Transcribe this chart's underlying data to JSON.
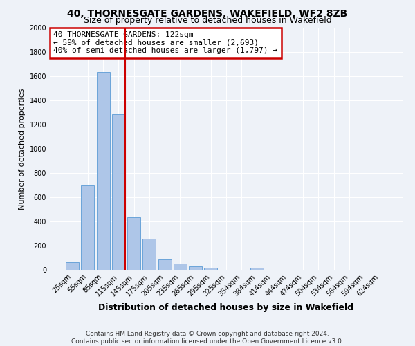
{
  "title": "40, THORNESGATE GARDENS, WAKEFIELD, WF2 8ZB",
  "subtitle": "Size of property relative to detached houses in Wakefield",
  "xlabel": "Distribution of detached houses by size in Wakefield",
  "ylabel": "Number of detached properties",
  "bar_labels": [
    "25sqm",
    "55sqm",
    "85sqm",
    "115sqm",
    "145sqm",
    "175sqm",
    "205sqm",
    "235sqm",
    "265sqm",
    "295sqm",
    "325sqm",
    "354sqm",
    "384sqm",
    "414sqm",
    "444sqm",
    "474sqm",
    "504sqm",
    "534sqm",
    "564sqm",
    "594sqm",
    "624sqm"
  ],
  "bar_values": [
    65,
    695,
    1635,
    1285,
    435,
    255,
    90,
    52,
    30,
    20,
    0,
    0,
    15,
    0,
    0,
    0,
    0,
    0,
    0,
    0,
    0
  ],
  "bar_color": "#aec6e8",
  "bar_edge_color": "#5b9bd5",
  "ref_line_bar_index": 3,
  "annotation_text": "40 THORNESGATE GARDENS: 122sqm\n← 59% of detached houses are smaller (2,693)\n40% of semi-detached houses are larger (1,797) →",
  "annotation_box_color": "#ffffff",
  "annotation_box_edge": "#cc0000",
  "ylim": [
    0,
    2000
  ],
  "yticks": [
    0,
    200,
    400,
    600,
    800,
    1000,
    1200,
    1400,
    1600,
    1800,
    2000
  ],
  "footer_line1": "Contains HM Land Registry data © Crown copyright and database right 2024.",
  "footer_line2": "Contains public sector information licensed under the Open Government Licence v3.0.",
  "bg_color": "#eef2f8",
  "plot_bg_color": "#eef2f8",
  "grid_color": "#ffffff",
  "ref_line_color": "#cc0000",
  "title_fontsize": 10,
  "subtitle_fontsize": 9,
  "xlabel_fontsize": 9,
  "ylabel_fontsize": 8,
  "tick_fontsize": 7,
  "footer_fontsize": 6.5,
  "annotation_fontsize": 8
}
